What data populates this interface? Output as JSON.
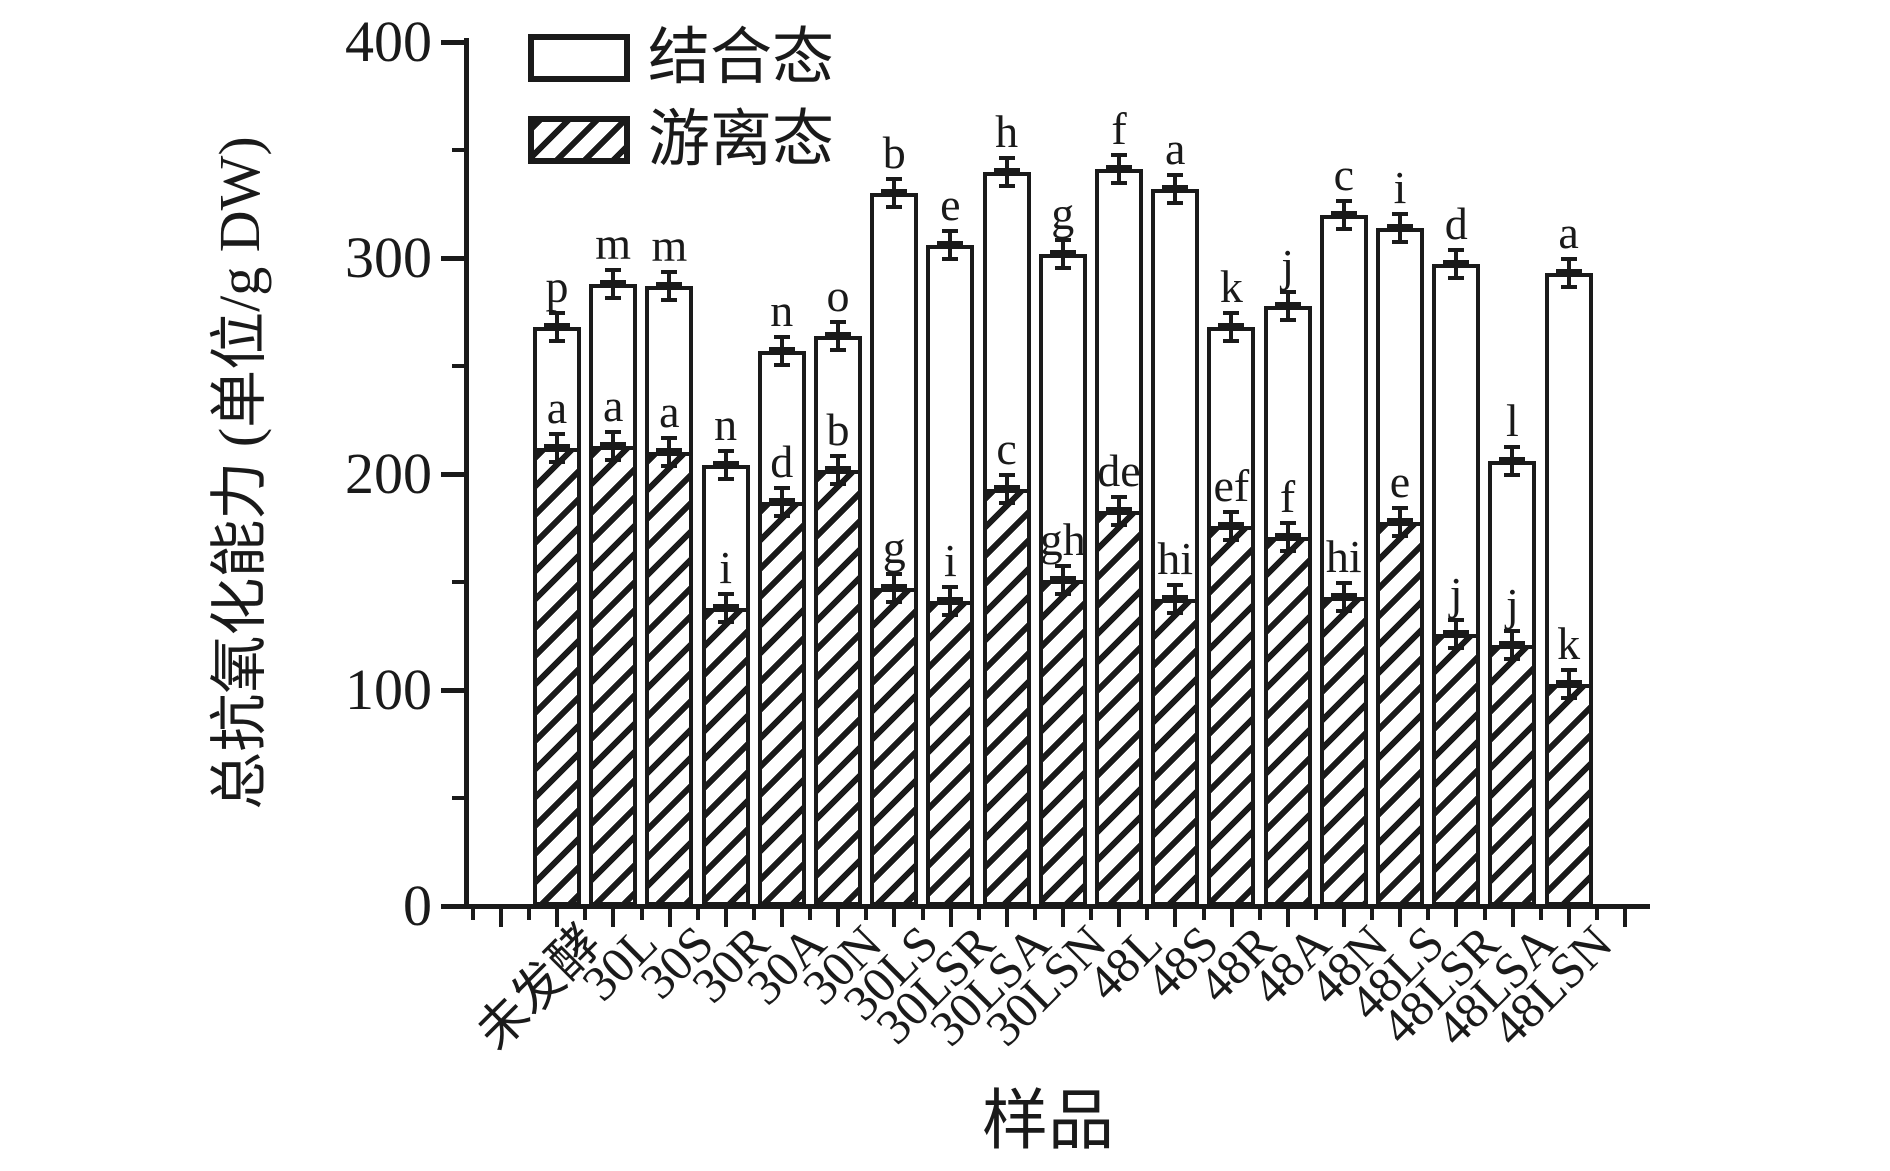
{
  "chart_data": {
    "type": "bar",
    "subtype": "stacked",
    "title": "",
    "xlabel": "样品",
    "ylabel": "总抗氧化能力 (单位/g DW)",
    "ylim": [
      0,
      400
    ],
    "yticks_major": [
      0,
      100,
      200,
      300,
      400
    ],
    "yticks_minor": [
      50,
      150,
      250,
      350
    ],
    "grid": false,
    "legend_position": "top-left-inside",
    "legend": [
      {
        "label": "结合态",
        "fill": "open"
      },
      {
        "label": "游离态",
        "fill": "hatched"
      }
    ],
    "categories": [
      "未发酵",
      "30L",
      "30S",
      "30R",
      "30A",
      "30N",
      "30LS",
      "30LSR",
      "30LSA",
      "30LSN",
      "48L",
      "48S",
      "48R",
      "48A",
      "48N",
      "48LS",
      "48LSR",
      "48LSA",
      "48LSN"
    ],
    "series": [
      {
        "name": "游离态",
        "role": "free-bottom-hatched",
        "values": [
          212,
          213,
          210,
          138,
          187,
          202,
          147,
          141,
          193,
          151,
          183,
          142,
          176,
          171,
          143,
          178,
          126,
          121,
          103
        ],
        "sig_letters": [
          "a",
          "a",
          "a",
          "i",
          "d",
          "b",
          "g",
          "i",
          "c",
          "gh",
          "de",
          "hi",
          "ef",
          "f",
          "hi",
          "e",
          "j",
          "j",
          "k"
        ]
      },
      {
        "name": "结合态",
        "role": "bound-top-open",
        "values": [
          56,
          75,
          77,
          66,
          70,
          62,
          183,
          165,
          147,
          151,
          158,
          190,
          92,
          107,
          177,
          136,
          171,
          85,
          190
        ],
        "sig_letters": [
          "p",
          "m",
          "m",
          "n",
          "n",
          "o",
          "b",
          "e",
          "h",
          "g",
          "f",
          "a",
          "k",
          "j",
          "c",
          "i",
          "d",
          "l",
          "a"
        ]
      }
    ],
    "stack_totals": [
      268,
      288,
      287,
      204,
      257,
      264,
      330,
      306,
      340,
      302,
      341,
      332,
      268,
      278,
      320,
      314,
      297,
      206,
      293
    ],
    "error_bar_units": 5,
    "bar_fill": "#ffffff",
    "stroke_color": "#1a1a1a"
  }
}
